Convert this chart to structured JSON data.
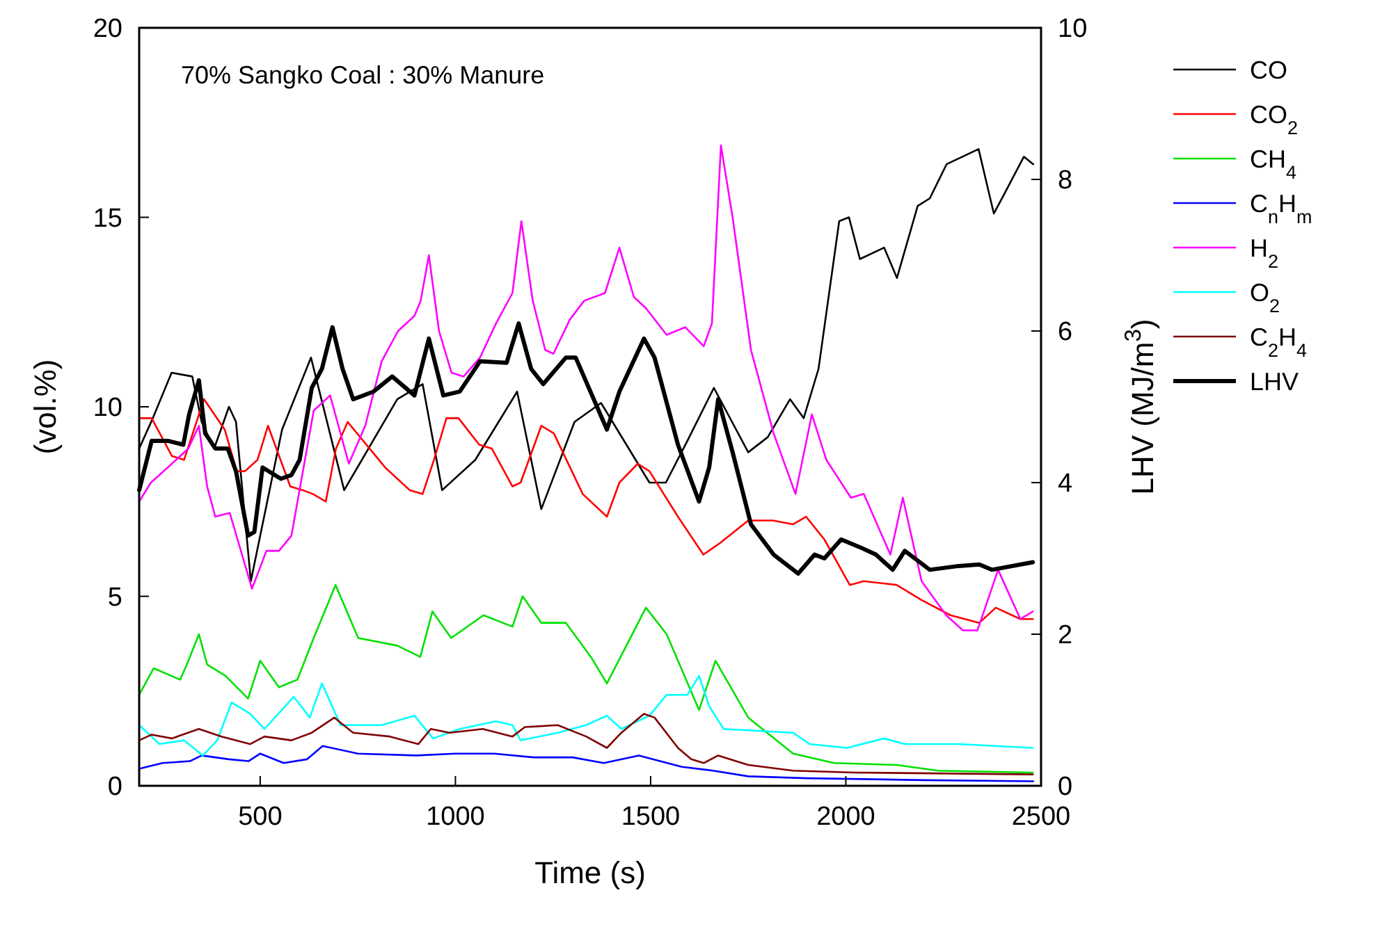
{
  "chart_data": {
    "type": "line",
    "title": "70% Sangko Coal : 30% Manure",
    "xlabel": "Time (s)",
    "ylabel": "(vol.%)",
    "y2label": "LHV (MJ/m$^{3}$)",
    "xlim": [
      190,
      2500
    ],
    "xticks": [
      500,
      1000,
      1500,
      2000,
      2500
    ],
    "ylim": [
      0,
      20
    ],
    "yticks": [
      0,
      5,
      10,
      15,
      20
    ],
    "y2lim": [
      0,
      10
    ],
    "y2ticks": [
      0,
      2,
      4,
      6,
      8,
      10
    ],
    "legend": "right",
    "grid": false,
    "series": [
      {
        "name": "CO",
        "color": "#000000",
        "x": [
          190,
          225,
          273,
          326,
          350,
          382,
          420,
          438,
          476,
          556,
          630,
          715,
          851,
          916,
          966,
          1051,
          1158,
          1220,
          1305,
          1373,
          1497,
          1539,
          1594,
          1662,
          1750,
          1800,
          1857,
          1892,
          1930,
          1983,
          2008,
          2036,
          2098,
          2131,
          2184,
          2215,
          2258,
          2340,
          2379,
          2405,
          2456,
          2480
        ],
        "values": [
          8.9,
          9.7,
          10.9,
          10.8,
          9.6,
          8.9,
          10.0,
          9.6,
          5.4,
          9.4,
          11.3,
          7.8,
          10.2,
          10.6,
          7.8,
          8.6,
          10.4,
          7.3,
          9.6,
          10.1,
          8.0,
          8.0,
          9.1,
          10.5,
          8.8,
          9.2,
          10.2,
          9.7,
          11.0,
          14.9,
          15.0,
          13.9,
          14.2,
          13.4,
          15.3,
          15.5,
          16.4,
          16.8,
          15.1,
          15.6,
          16.6,
          16.4
        ]
      },
      {
        "name": "CO$_{2}$",
        "color": "#ff0000",
        "x": [
          190,
          222,
          274,
          305,
          356,
          409,
          440,
          461,
          493,
          520,
          577,
          609,
          635,
          668,
          694,
          724,
          756,
          820,
          883,
          916,
          945,
          977,
          1008,
          1061,
          1093,
          1146,
          1167,
          1220,
          1252,
          1326,
          1388,
          1420,
          1467,
          1497,
          1570,
          1635,
          1677,
          1750,
          1813,
          1865,
          1898,
          1945,
          2010,
          2046,
          2130,
          2194,
          2268,
          2342,
          2384,
          2447,
          2479
        ],
        "values": [
          9.7,
          9.7,
          8.7,
          8.6,
          10.2,
          9.4,
          8.3,
          8.3,
          8.6,
          9.5,
          7.9,
          7.8,
          7.7,
          7.5,
          8.9,
          9.6,
          9.2,
          8.4,
          7.8,
          7.7,
          8.6,
          9.7,
          9.7,
          9.0,
          8.9,
          7.9,
          8.0,
          9.5,
          9.3,
          7.7,
          7.1,
          8.0,
          8.5,
          8.3,
          7.1,
          6.1,
          6.4,
          7.0,
          7.0,
          6.9,
          7.1,
          6.5,
          5.3,
          5.4,
          5.3,
          4.9,
          4.5,
          4.3,
          4.7,
          4.4,
          4.4
        ]
      },
      {
        "name": "CH$_{4}$",
        "color": "#00e000",
        "x": [
          190,
          227,
          295,
          316,
          343,
          364,
          411,
          469,
          500,
          548,
          595,
          637,
          693,
          751,
          851,
          910,
          941,
          989,
          1072,
          1146,
          1172,
          1220,
          1283,
          1347,
          1388,
          1488,
          1541,
          1624,
          1666,
          1750,
          1865,
          1970,
          2130,
          2236,
          2479
        ],
        "values": [
          2.4,
          3.1,
          2.8,
          3.3,
          4.0,
          3.2,
          2.9,
          2.3,
          3.3,
          2.6,
          2.8,
          3.9,
          5.3,
          3.9,
          3.7,
          3.4,
          4.6,
          3.9,
          4.5,
          4.2,
          5.0,
          4.3,
          4.3,
          3.4,
          2.7,
          4.7,
          4.0,
          2.0,
          3.3,
          1.8,
          0.85,
          0.6,
          0.55,
          0.4,
          0.35
        ]
      },
      {
        "name": "C$_{n}$H$_{m}$",
        "color": "#0000ff",
        "x": [
          190,
          250,
          320,
          350,
          420,
          470,
          500,
          560,
          620,
          660,
          750,
          900,
          1000,
          1100,
          1200,
          1300,
          1380,
          1470,
          1580,
          1660,
          1750,
          1900,
          2200,
          2480
        ],
        "values": [
          0.45,
          0.6,
          0.65,
          0.8,
          0.7,
          0.65,
          0.85,
          0.6,
          0.7,
          1.05,
          0.85,
          0.8,
          0.85,
          0.85,
          0.75,
          0.75,
          0.6,
          0.8,
          0.5,
          0.4,
          0.25,
          0.2,
          0.15,
          0.12
        ]
      },
      {
        "name": "H$_{2}$",
        "color": "#ff00ff",
        "x": [
          190,
          220,
          274,
          316,
          343,
          364,
          385,
          422,
          479,
          516,
          548,
          580,
          637,
          679,
          727,
          769,
          811,
          853,
          895,
          911,
          932,
          958,
          990,
          1021,
          1063,
          1104,
          1146,
          1169,
          1198,
          1230,
          1251,
          1293,
          1330,
          1383,
          1420,
          1457,
          1488,
          1541,
          1589,
          1636,
          1657,
          1680,
          1710,
          1757,
          1815,
          1871,
          1913,
          1950,
          2013,
          2046,
          2114,
          2146,
          2194,
          2257,
          2300,
          2337,
          2390,
          2447,
          2479
        ],
        "values": [
          7.5,
          8.0,
          8.5,
          8.9,
          9.5,
          7.9,
          7.1,
          7.2,
          5.2,
          6.2,
          6.2,
          6.6,
          9.9,
          10.3,
          8.5,
          9.5,
          11.2,
          12.0,
          12.4,
          12.8,
          14.0,
          12.0,
          10.9,
          10.8,
          11.3,
          12.2,
          13.0,
          14.9,
          12.8,
          11.5,
          11.4,
          12.3,
          12.8,
          13.0,
          14.2,
          12.9,
          12.6,
          11.9,
          12.1,
          11.6,
          12.2,
          16.9,
          15.0,
          11.5,
          9.3,
          7.7,
          9.8,
          8.6,
          7.6,
          7.7,
          6.1,
          7.6,
          5.4,
          4.5,
          4.1,
          4.1,
          5.7,
          4.4,
          4.6
        ]
      },
      {
        "name": "O$_{2}$",
        "color": "#00ffff",
        "x": [
          190,
          242,
          305,
          353,
          390,
          427,
          474,
          511,
          586,
          627,
          658,
          706,
          811,
          895,
          943,
          1011,
          1104,
          1146,
          1167,
          1262,
          1335,
          1388,
          1425,
          1497,
          1541,
          1594,
          1624,
          1650,
          1687,
          1865,
          1907,
          2003,
          2098,
          2151,
          2289,
          2479
        ],
        "values": [
          1.6,
          1.1,
          1.2,
          0.8,
          1.2,
          2.2,
          1.9,
          1.5,
          2.35,
          1.8,
          2.7,
          1.6,
          1.6,
          1.85,
          1.25,
          1.5,
          1.7,
          1.6,
          1.2,
          1.4,
          1.6,
          1.85,
          1.5,
          1.85,
          2.4,
          2.4,
          2.9,
          2.1,
          1.5,
          1.4,
          1.1,
          1.0,
          1.25,
          1.1,
          1.1,
          1.0
        ]
      },
      {
        "name": "C$_{2}$H$_{4}$",
        "color": "#800000",
        "x": [
          190,
          222,
          274,
          343,
          401,
          474,
          511,
          580,
          632,
          690,
          738,
          832,
          905,
          937,
          985,
          1070,
          1146,
          1178,
          1262,
          1335,
          1388,
          1425,
          1483,
          1510,
          1570,
          1604,
          1636,
          1673,
          1750,
          1865,
          2024,
          2479
        ],
        "values": [
          1.2,
          1.35,
          1.25,
          1.5,
          1.3,
          1.1,
          1.3,
          1.2,
          1.4,
          1.8,
          1.4,
          1.3,
          1.1,
          1.5,
          1.4,
          1.5,
          1.3,
          1.55,
          1.6,
          1.3,
          1.0,
          1.4,
          1.9,
          1.8,
          1.0,
          0.7,
          0.6,
          0.8,
          0.55,
          0.4,
          0.35,
          0.3
        ]
      },
      {
        "name": "LHV",
        "color": "#000000",
        "axis": "y2",
        "x": [
          190,
          222,
          265,
          303,
          318,
          343,
          359,
          385,
          417,
          438,
          469,
          485,
          506,
          553,
          580,
          601,
          632,
          658,
          685,
          711,
          738,
          790,
          838,
          895,
          932,
          969,
          1011,
          1063,
          1131,
          1162,
          1194,
          1225,
          1283,
          1308,
          1388,
          1420,
          1483,
          1510,
          1570,
          1624,
          1650,
          1673,
          1710,
          1757,
          1815,
          1878,
          1920,
          1945,
          1988,
          2035,
          2077,
          2120,
          2151,
          2215,
          2289,
          2342,
          2374,
          2479
        ],
        "values": [
          3.9,
          4.55,
          4.55,
          4.5,
          4.9,
          5.35,
          4.65,
          4.45,
          4.45,
          4.15,
          3.3,
          3.35,
          4.2,
          4.05,
          4.1,
          4.3,
          5.25,
          5.5,
          6.05,
          5.5,
          5.1,
          5.2,
          5.4,
          5.15,
          5.9,
          5.15,
          5.2,
          5.6,
          5.58,
          6.1,
          5.5,
          5.3,
          5.65,
          5.65,
          4.7,
          5.2,
          5.9,
          5.65,
          4.5,
          3.75,
          4.2,
          5.1,
          4.4,
          3.45,
          3.05,
          2.8,
          3.05,
          3.0,
          3.25,
          3.15,
          3.05,
          2.85,
          3.1,
          2.85,
          2.9,
          2.92,
          2.85,
          2.95
        ]
      }
    ]
  }
}
